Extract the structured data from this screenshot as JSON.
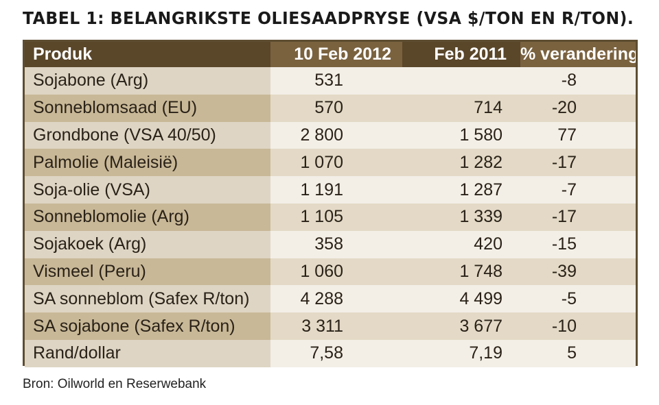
{
  "title": "TABEL 1: BELANGRIKSTE OLIESAADPRYSE (VSA $/TON EN R/TON).",
  "table": {
    "headers": [
      "Produk",
      "10 Feb 2012",
      "Feb 2011",
      "% verandering"
    ],
    "rows": [
      [
        "Sojabone (Arg)",
        "531",
        "",
        "-8"
      ],
      [
        "Sonneblomsaad (EU)",
        "570",
        "714",
        "-20"
      ],
      [
        "Grondbone (VSA 40/50)",
        "2 800",
        "1 580",
        "77"
      ],
      [
        "Palmolie (Maleisië)",
        "1 070",
        "1 282",
        "-17"
      ],
      [
        "Soja-olie (VSA)",
        "1 191",
        "1 287",
        "-7"
      ],
      [
        "Sonneblomolie (Arg)",
        "1 105",
        "1 339",
        "-17"
      ],
      [
        "Sojakoek (Arg)",
        "358",
        "420",
        "-15"
      ],
      [
        "Vismeel (Peru)",
        "1 060",
        "1 748",
        "-39"
      ],
      [
        "SA sonneblom (Safex R/ton)",
        "4 288",
        "4 499",
        "-5"
      ],
      [
        "SA sojabone (Safex R/ton)",
        "3 311",
        "3 677",
        "-10"
      ],
      [
        "Rand/dollar",
        "7,58",
        "7,19",
        "5"
      ]
    ]
  },
  "source": "Bron: Oilworld en Reserwebank",
  "colors": {
    "border": "#5e4d31",
    "header_dark": "#5a4629",
    "header_light": "#7a623f",
    "row_dark": "#c8b897",
    "row_light": "#ded5c4"
  }
}
